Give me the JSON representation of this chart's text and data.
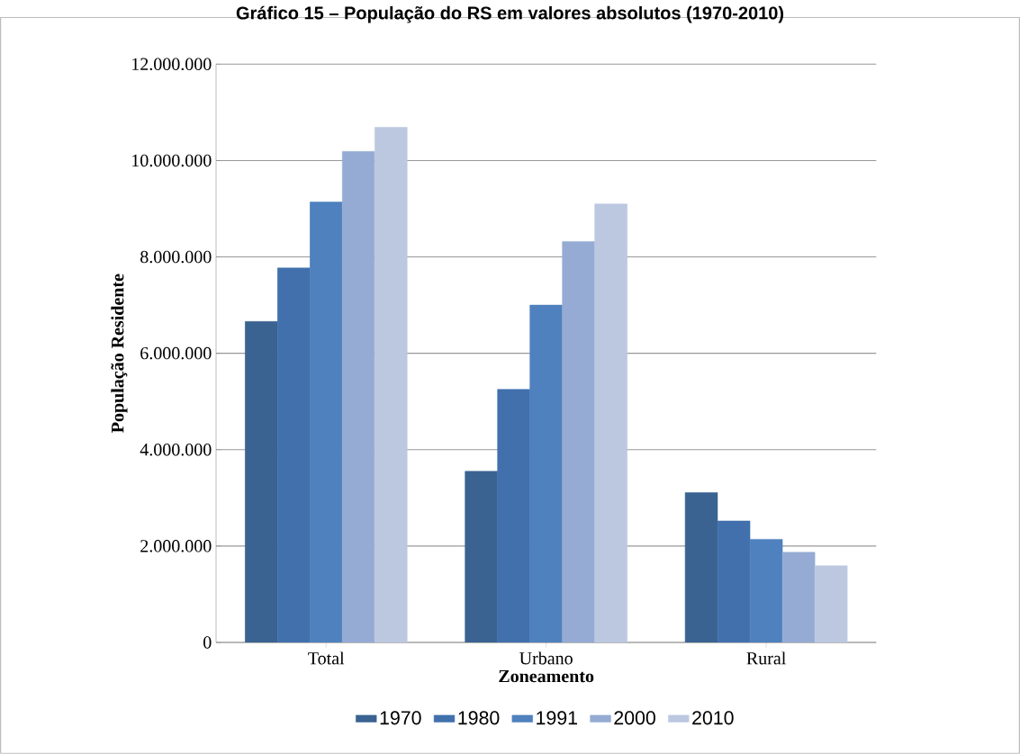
{
  "chart_data": {
    "type": "bar",
    "title": "Gráfico 15 – População do RS em valores absolutos (1970-2010)",
    "xlabel": "Zoneamento",
    "ylabel": "População Residente",
    "categories": [
      "Total",
      "Urbano",
      "Rural"
    ],
    "series": [
      {
        "name": "1970",
        "color": "#3a6391",
        "values": [
          6660000,
          3550000,
          3110000
        ]
      },
      {
        "name": "1980",
        "color": "#4170ad",
        "values": [
          7770000,
          5250000,
          2520000
        ]
      },
      {
        "name": "1991",
        "color": "#4e81bd",
        "values": [
          9140000,
          7000000,
          2140000
        ]
      },
      {
        "name": "2000",
        "color": "#95abd3",
        "values": [
          10190000,
          8320000,
          1870000
        ]
      },
      {
        "name": "2010",
        "color": "#bcc8e0",
        "values": [
          10690000,
          9100000,
          1590000
        ]
      }
    ],
    "ylim": [
      0,
      12000000
    ],
    "yticks": [
      {
        "value": 0,
        "label": "0"
      },
      {
        "value": 2000000,
        "label": "2.000.000"
      },
      {
        "value": 4000000,
        "label": "4.000.000"
      },
      {
        "value": 6000000,
        "label": "6.000.000"
      },
      {
        "value": 8000000,
        "label": "8.000.000"
      },
      {
        "value": 10000000,
        "label": "10.000.000"
      },
      {
        "value": 12000000,
        "label": "12.000.000"
      }
    ],
    "grid": "y",
    "legend": "bottom"
  }
}
